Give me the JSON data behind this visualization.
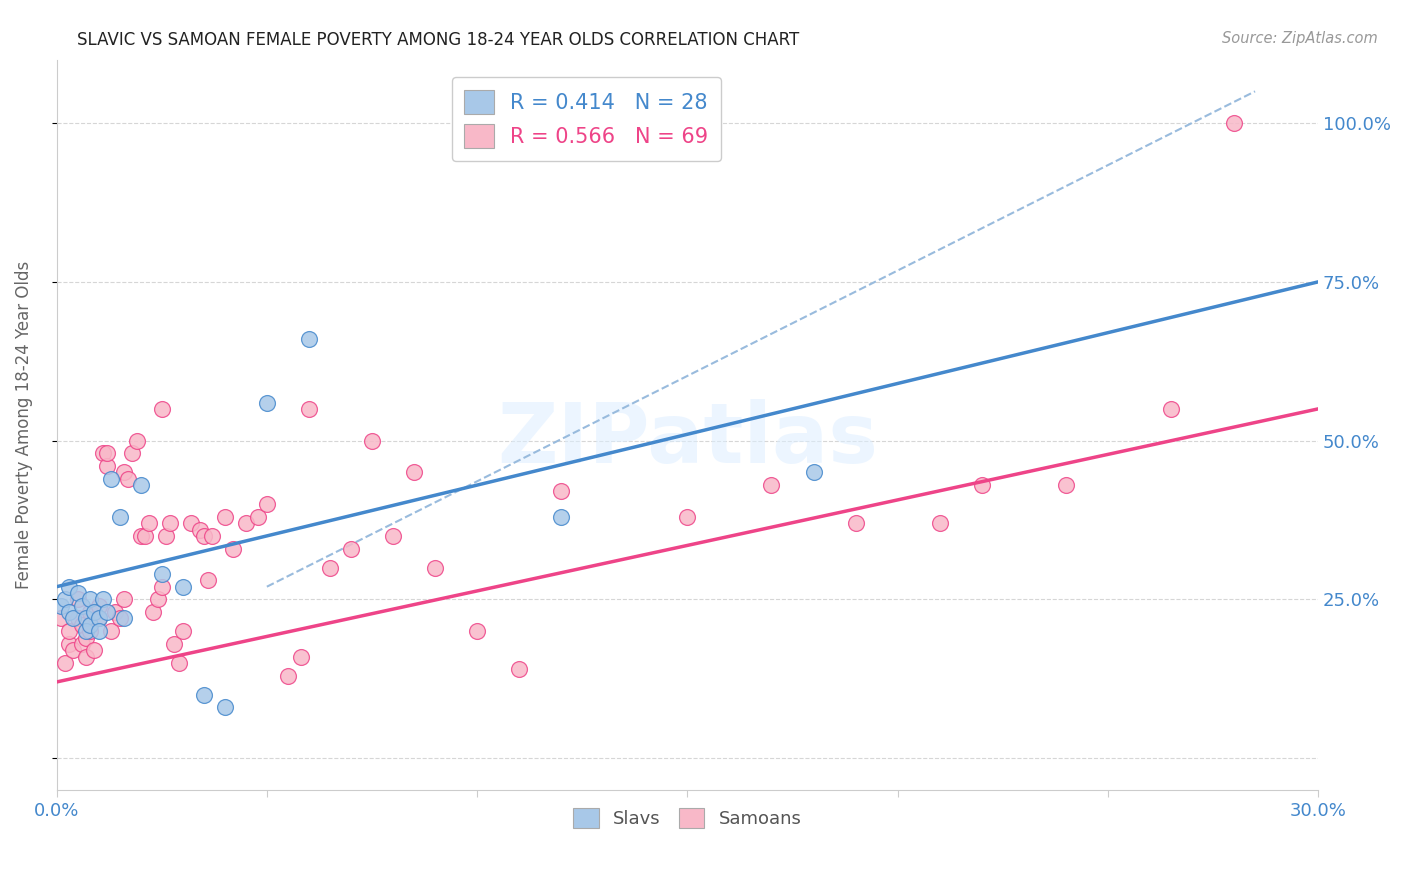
{
  "title": "SLAVIC VS SAMOAN FEMALE POVERTY AMONG 18-24 YEAR OLDS CORRELATION CHART",
  "source": "Source: ZipAtlas.com",
  "ylabel": "Female Poverty Among 18-24 Year Olds",
  "xlim": [
    0.0,
    0.3
  ],
  "ylim": [
    -0.05,
    1.1
  ],
  "x_ticks": [
    0.0,
    0.05,
    0.1,
    0.15,
    0.2,
    0.25,
    0.3
  ],
  "x_tick_labels": [
    "0.0%",
    "",
    "",
    "",
    "",
    "",
    "30.0%"
  ],
  "y_ticks": [
    0.0,
    0.25,
    0.5,
    0.75,
    1.0
  ],
  "y_tick_labels": [
    "",
    "25.0%",
    "50.0%",
    "75.0%",
    "100.0%"
  ],
  "slavs_color": "#a8c8e8",
  "samoans_color": "#f8b8c8",
  "slavs_line_color": "#4488cc",
  "samoans_line_color": "#ee4488",
  "dashed_line_color": "#99bbdd",
  "watermark_text": "ZIPatlas",
  "slavs_line_x0": 0.0,
  "slavs_line_y0": 0.27,
  "slavs_line_x1": 0.3,
  "slavs_line_y1": 0.75,
  "samoans_line_x0": 0.0,
  "samoans_line_y0": 0.12,
  "samoans_line_x1": 0.3,
  "samoans_line_y1": 0.55,
  "dash_line_x0": 0.05,
  "dash_line_y0": 0.27,
  "dash_line_x1": 0.285,
  "dash_line_y1": 1.05,
  "slavs_x": [
    0.001,
    0.002,
    0.003,
    0.003,
    0.004,
    0.005,
    0.006,
    0.007,
    0.007,
    0.008,
    0.008,
    0.009,
    0.01,
    0.01,
    0.011,
    0.012,
    0.013,
    0.015,
    0.016,
    0.02,
    0.025,
    0.03,
    0.035,
    0.04,
    0.05,
    0.06,
    0.18,
    0.12
  ],
  "slavs_y": [
    0.24,
    0.25,
    0.27,
    0.23,
    0.22,
    0.26,
    0.24,
    0.22,
    0.2,
    0.21,
    0.25,
    0.23,
    0.22,
    0.2,
    0.25,
    0.23,
    0.44,
    0.38,
    0.22,
    0.43,
    0.29,
    0.27,
    0.1,
    0.08,
    0.56,
    0.66,
    0.45,
    0.38
  ],
  "samoans_x": [
    0.001,
    0.002,
    0.003,
    0.003,
    0.004,
    0.005,
    0.005,
    0.006,
    0.006,
    0.007,
    0.007,
    0.008,
    0.008,
    0.009,
    0.01,
    0.01,
    0.011,
    0.012,
    0.012,
    0.013,
    0.014,
    0.015,
    0.016,
    0.016,
    0.017,
    0.018,
    0.019,
    0.02,
    0.021,
    0.022,
    0.023,
    0.024,
    0.025,
    0.025,
    0.026,
    0.027,
    0.028,
    0.029,
    0.03,
    0.032,
    0.034,
    0.035,
    0.036,
    0.037,
    0.04,
    0.042,
    0.045,
    0.048,
    0.05,
    0.055,
    0.058,
    0.06,
    0.065,
    0.07,
    0.075,
    0.08,
    0.085,
    0.09,
    0.1,
    0.11,
    0.12,
    0.15,
    0.17,
    0.19,
    0.21,
    0.22,
    0.24,
    0.265,
    0.28
  ],
  "samoans_y": [
    0.22,
    0.15,
    0.18,
    0.2,
    0.17,
    0.22,
    0.25,
    0.18,
    0.21,
    0.19,
    0.16,
    0.23,
    0.2,
    0.17,
    0.22,
    0.24,
    0.48,
    0.46,
    0.48,
    0.2,
    0.23,
    0.22,
    0.25,
    0.45,
    0.44,
    0.48,
    0.5,
    0.35,
    0.35,
    0.37,
    0.23,
    0.25,
    0.27,
    0.55,
    0.35,
    0.37,
    0.18,
    0.15,
    0.2,
    0.37,
    0.36,
    0.35,
    0.28,
    0.35,
    0.38,
    0.33,
    0.37,
    0.38,
    0.4,
    0.13,
    0.16,
    0.55,
    0.3,
    0.33,
    0.5,
    0.35,
    0.45,
    0.3,
    0.2,
    0.14,
    0.42,
    0.38,
    0.43,
    0.37,
    0.37,
    0.43,
    0.43,
    0.55,
    1.0
  ]
}
